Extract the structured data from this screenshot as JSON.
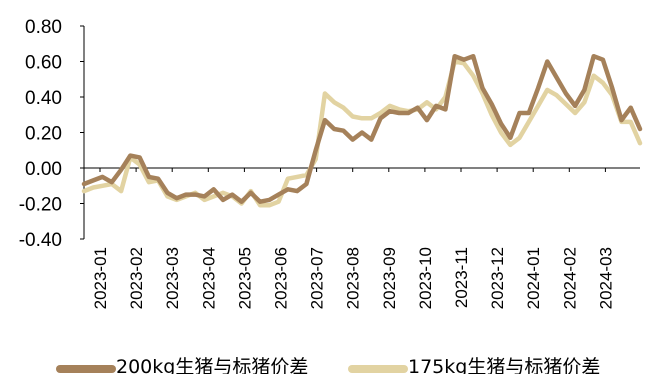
{
  "chart_data": {
    "type": "line",
    "title": "",
    "xlabel": "",
    "ylabel": "",
    "ylim": [
      -0.4,
      0.8
    ],
    "yticks": [
      "0.80",
      "0.60",
      "0.40",
      "0.20",
      "0.00",
      "-0.20",
      "-0.40"
    ],
    "ytick_values": [
      0.8,
      0.6,
      0.4,
      0.2,
      0.0,
      -0.2,
      -0.4
    ],
    "xticks": [
      "2023-01",
      "2023-02",
      "2023-03",
      "2023-04",
      "2023-05",
      "2023-06",
      "2023-07",
      "2023-08",
      "2023-09",
      "2023-10",
      "2023-11",
      "2023-12",
      "2024-01",
      "2024-02",
      "2024-03"
    ],
    "grid": false,
    "legend_position": "bottom",
    "series": [
      {
        "name": "200kg生猪与标猪价差",
        "color": "#a5815a",
        "values": [
          -0.09,
          -0.07,
          -0.05,
          -0.08,
          -0.01,
          0.07,
          0.06,
          -0.05,
          -0.06,
          -0.14,
          -0.17,
          -0.15,
          -0.15,
          -0.16,
          -0.12,
          -0.18,
          -0.15,
          -0.19,
          -0.14,
          -0.19,
          -0.18,
          -0.15,
          -0.12,
          -0.13,
          -0.09,
          0.1,
          0.27,
          0.22,
          0.21,
          0.16,
          0.2,
          0.16,
          0.28,
          0.32,
          0.31,
          0.31,
          0.34,
          0.27,
          0.35,
          0.33,
          0.63,
          0.61,
          0.63,
          0.45,
          0.36,
          0.25,
          0.17,
          0.31,
          0.31,
          0.45,
          0.6,
          0.51,
          0.42,
          0.35,
          0.44,
          0.63,
          0.61,
          0.45,
          0.27,
          0.34,
          0.22
        ]
      },
      {
        "name": "175kg生猪与标猪价差",
        "color": "#e2d3a2",
        "values": [
          -0.13,
          -0.11,
          -0.1,
          -0.09,
          -0.13,
          0.06,
          0.02,
          -0.08,
          -0.07,
          -0.16,
          -0.18,
          -0.16,
          -0.14,
          -0.18,
          -0.16,
          -0.14,
          -0.16,
          -0.2,
          -0.13,
          -0.21,
          -0.21,
          -0.19,
          -0.06,
          -0.05,
          -0.04,
          0.05,
          0.42,
          0.37,
          0.34,
          0.29,
          0.28,
          0.28,
          0.31,
          0.35,
          0.33,
          0.32,
          0.33,
          0.37,
          0.33,
          0.4,
          0.6,
          0.59,
          0.52,
          0.42,
          0.3,
          0.2,
          0.13,
          0.17,
          0.26,
          0.35,
          0.44,
          0.41,
          0.36,
          0.31,
          0.37,
          0.52,
          0.48,
          0.41,
          0.26,
          0.26,
          0.14
        ]
      }
    ]
  }
}
